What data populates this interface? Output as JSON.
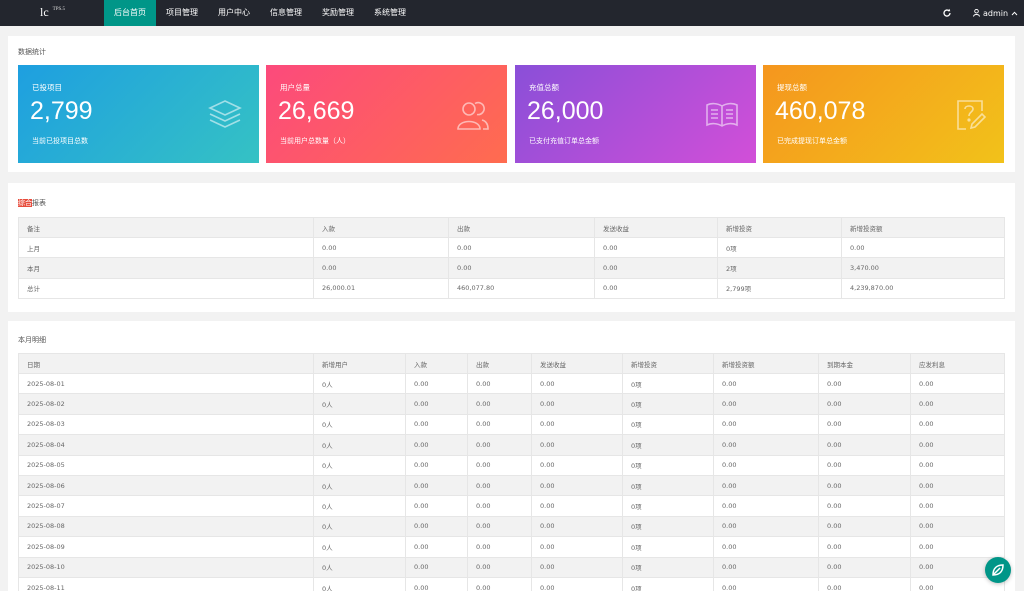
{
  "header": {
    "logo": "lc",
    "logo_badge": "TPS.5",
    "nav": [
      {
        "label": "后台首页",
        "active": true
      },
      {
        "label": "项目管理",
        "active": false
      },
      {
        "label": "用户中心",
        "active": false
      },
      {
        "label": "信息管理",
        "active": false
      },
      {
        "label": "奖励管理",
        "active": false
      },
      {
        "label": "系统管理",
        "active": false
      }
    ],
    "refresh_icon": "refresh-icon",
    "user": "admin",
    "user_icon": "user-icon",
    "caret_icon": "chevron-up-icon"
  },
  "stats": {
    "title": "数据统计",
    "cards": [
      {
        "label": "已投项目",
        "value": "2,799",
        "desc": "当前已投项目总数",
        "icon": "layers-icon",
        "gradient": [
          "#1e9fe0",
          "#35c2c4"
        ]
      },
      {
        "label": "用户总量",
        "value": "26,669",
        "desc": "当前用户总数量（人）",
        "icon": "users-icon",
        "gradient": [
          "#fc4a7c",
          "#ff6c4f"
        ]
      },
      {
        "label": "充值总额",
        "value": "26,000",
        "desc": "已支付充值订单总金额",
        "icon": "book-icon",
        "gradient": [
          "#8a4fd8",
          "#d24fd8"
        ]
      },
      {
        "label": "提现总额",
        "value": "460,078",
        "desc": "已完成提现订单总金额",
        "icon": "help-edit-icon",
        "gradient": [
          "#f5961e",
          "#f2c21a"
        ]
      }
    ]
  },
  "report": {
    "title_highlight": "综合",
    "title_rest": "报表",
    "headers": [
      "备注",
      "入款",
      "出款",
      "发送收益",
      "新增投资",
      "新增投资额"
    ],
    "rows": [
      [
        "上月",
        "0.00",
        "0.00",
        "0.00",
        "0项",
        "0.00"
      ],
      [
        "本月",
        "0.00",
        "0.00",
        "0.00",
        "2项",
        "3,470.00"
      ],
      [
        "总计",
        "26,000.01",
        "460,077.80",
        "0.00",
        "2,799项",
        "4,239,870.00"
      ]
    ]
  },
  "monthly": {
    "title": "本月明细",
    "headers": [
      "日期",
      "新增用户",
      "入款",
      "出款",
      "发送收益",
      "新增投资",
      "新增投资额",
      "到期本金",
      "应发利息"
    ],
    "rows": [
      [
        "2025-08-01",
        "0人",
        "0.00",
        "0.00",
        "0.00",
        "0项",
        "0.00",
        "0.00",
        "0.00"
      ],
      [
        "2025-08-02",
        "0人",
        "0.00",
        "0.00",
        "0.00",
        "0项",
        "0.00",
        "0.00",
        "0.00"
      ],
      [
        "2025-08-03",
        "0人",
        "0.00",
        "0.00",
        "0.00",
        "0项",
        "0.00",
        "0.00",
        "0.00"
      ],
      [
        "2025-08-04",
        "0人",
        "0.00",
        "0.00",
        "0.00",
        "0项",
        "0.00",
        "0.00",
        "0.00"
      ],
      [
        "2025-08-05",
        "0人",
        "0.00",
        "0.00",
        "0.00",
        "0项",
        "0.00",
        "0.00",
        "0.00"
      ],
      [
        "2025-08-06",
        "0人",
        "0.00",
        "0.00",
        "0.00",
        "0项",
        "0.00",
        "0.00",
        "0.00"
      ],
      [
        "2025-08-07",
        "0人",
        "0.00",
        "0.00",
        "0.00",
        "0项",
        "0.00",
        "0.00",
        "0.00"
      ],
      [
        "2025-08-08",
        "0人",
        "0.00",
        "0.00",
        "0.00",
        "0项",
        "0.00",
        "0.00",
        "0.00"
      ],
      [
        "2025-08-09",
        "0人",
        "0.00",
        "0.00",
        "0.00",
        "0项",
        "0.00",
        "0.00",
        "0.00"
      ],
      [
        "2025-08-10",
        "0人",
        "0.00",
        "0.00",
        "0.00",
        "0项",
        "0.00",
        "0.00",
        "0.00"
      ],
      [
        "2025-08-11",
        "0人",
        "0.00",
        "0.00",
        "0.00",
        "0项",
        "0.00",
        "0.00",
        "0.00"
      ]
    ]
  },
  "float_button_icon": "leaf-icon",
  "colors": {
    "header_bg": "#23262e",
    "accent": "#009688",
    "highlight": "#e74c3c"
  }
}
